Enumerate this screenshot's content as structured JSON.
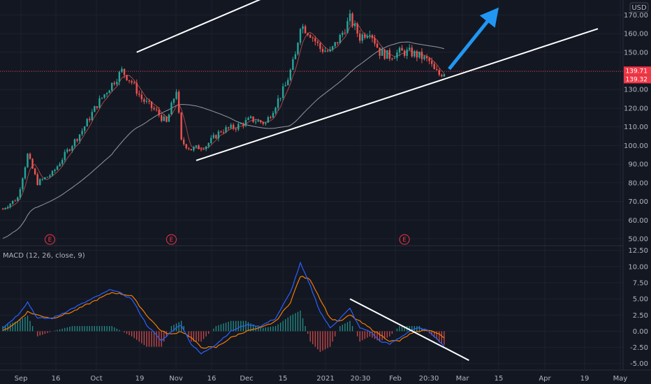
{
  "currency": "USD",
  "price_badges": [
    {
      "value": "139.71",
      "price": 139.71
    },
    {
      "value": "139.32",
      "price": 139.32
    }
  ],
  "earnings_label": "E",
  "colors": {
    "background": "#131722",
    "up": "#26a69a",
    "down": "#ef5350",
    "ma_long": "#9598a1",
    "ma_short": "#d1544c",
    "macd": "#2962ff",
    "signal": "#f57c00",
    "trendline": "#ffffff",
    "arrow": "#2196f3",
    "badge": "#f23645"
  },
  "chart_data": [
    {
      "type": "candlestick",
      "ylim": [
        47,
        178
      ],
      "y_ticks": [
        "50.00",
        "60.00",
        "70.00",
        "80.00",
        "90.00",
        "100.00",
        "110.00",
        "120.00",
        "130.00",
        "140.00",
        "150.00",
        "160.00",
        "170.00"
      ],
      "x_ticks": [
        "Sep",
        "16",
        "Oct",
        "19",
        "Nov",
        "16",
        "Dec",
        "15",
        "2021",
        "20:30",
        "Feb",
        "20:30",
        "Mar",
        "15",
        "Apr",
        "19",
        "May"
      ],
      "earnings_markers": [
        19,
        68,
        162
      ],
      "price_path": [
        [
          0,
          66
        ],
        [
          6,
          72
        ],
        [
          10,
          95
        ],
        [
          14,
          80
        ],
        [
          20,
          85
        ],
        [
          26,
          97
        ],
        [
          32,
          108
        ],
        [
          38,
          122
        ],
        [
          44,
          133
        ],
        [
          48,
          140
        ],
        [
          52,
          134
        ],
        [
          56,
          125
        ],
        [
          62,
          118
        ],
        [
          66,
          112
        ],
        [
          70,
          130
        ],
        [
          72,
          102
        ],
        [
          76,
          98
        ],
        [
          82,
          100
        ],
        [
          88,
          108
        ],
        [
          94,
          110
        ],
        [
          100,
          114
        ],
        [
          106,
          112
        ],
        [
          110,
          122
        ],
        [
          114,
          132
        ],
        [
          118,
          148
        ],
        [
          120,
          165
        ],
        [
          124,
          160
        ],
        [
          128,
          152
        ],
        [
          132,
          150
        ],
        [
          136,
          158
        ],
        [
          140,
          168
        ],
        [
          144,
          158
        ],
        [
          148,
          162
        ],
        [
          152,
          150
        ],
        [
          156,
          148
        ],
        [
          160,
          150
        ],
        [
          164,
          150
        ],
        [
          168,
          148
        ],
        [
          172,
          145
        ],
        [
          174,
          140
        ],
        [
          176,
          138
        ],
        [
          178,
          139.5
        ]
      ],
      "trendlines": [
        {
          "x": [
            54,
            166
          ],
          "y": [
            150,
            213.6
          ]
        },
        {
          "x": [
            78,
            240
          ],
          "y": [
            92,
            162.6
          ]
        }
      ],
      "arrow": {
        "x": [
          180,
          200
        ],
        "y": [
          141,
          174
        ]
      }
    },
    {
      "type": "macd",
      "title": "MACD (12, 26, close, 9)",
      "ylim": [
        -6,
        13
      ],
      "y_ticks": [
        "-5.00",
        "-2.50",
        "0.00",
        "2.50",
        "5.00",
        "7.50",
        "10.00",
        "12.50"
      ],
      "macd_path": [
        [
          0,
          0.5
        ],
        [
          6,
          2.5
        ],
        [
          10,
          4.5
        ],
        [
          14,
          2
        ],
        [
          20,
          2
        ],
        [
          28,
          3.5
        ],
        [
          36,
          5
        ],
        [
          44,
          6.5
        ],
        [
          52,
          5
        ],
        [
          58,
          1
        ],
        [
          64,
          -1.5
        ],
        [
          68,
          0
        ],
        [
          72,
          1
        ],
        [
          76,
          -2
        ],
        [
          80,
          -3.5
        ],
        [
          86,
          -2
        ],
        [
          92,
          0
        ],
        [
          98,
          1
        ],
        [
          104,
          0.8
        ],
        [
          110,
          2
        ],
        [
          116,
          6
        ],
        [
          120,
          10.5
        ],
        [
          124,
          7
        ],
        [
          128,
          3
        ],
        [
          132,
          0.5
        ],
        [
          136,
          2
        ],
        [
          140,
          3.5
        ],
        [
          144,
          0.5
        ],
        [
          148,
          0
        ],
        [
          152,
          -1.5
        ],
        [
          156,
          -2
        ],
        [
          160,
          -1
        ],
        [
          164,
          0
        ],
        [
          168,
          0.5
        ],
        [
          172,
          0
        ],
        [
          176,
          -1.5
        ],
        [
          178,
          -2.3
        ]
      ],
      "signal_path": [
        [
          0,
          0
        ],
        [
          6,
          1.5
        ],
        [
          10,
          3
        ],
        [
          14,
          2.5
        ],
        [
          20,
          2
        ],
        [
          28,
          3
        ],
        [
          36,
          4.5
        ],
        [
          44,
          6
        ],
        [
          52,
          5.5
        ],
        [
          58,
          2.5
        ],
        [
          64,
          0
        ],
        [
          68,
          -0.5
        ],
        [
          72,
          0
        ],
        [
          76,
          -1
        ],
        [
          80,
          -2.5
        ],
        [
          86,
          -2.5
        ],
        [
          92,
          -1
        ],
        [
          98,
          0
        ],
        [
          104,
          0.5
        ],
        [
          110,
          1.5
        ],
        [
          116,
          4.5
        ],
        [
          120,
          8.5
        ],
        [
          124,
          8
        ],
        [
          128,
          5
        ],
        [
          132,
          2
        ],
        [
          136,
          1.5
        ],
        [
          140,
          2.5
        ],
        [
          144,
          1.5
        ],
        [
          148,
          0.5
        ],
        [
          152,
          -0.5
        ],
        [
          156,
          -1.5
        ],
        [
          160,
          -1.5
        ],
        [
          164,
          -0.5
        ],
        [
          168,
          0
        ],
        [
          172,
          0.2
        ],
        [
          176,
          -0.5
        ],
        [
          178,
          -1
        ]
      ],
      "trendline": {
        "x": [
          140,
          188
        ],
        "y": [
          5,
          -4.5
        ]
      }
    }
  ]
}
